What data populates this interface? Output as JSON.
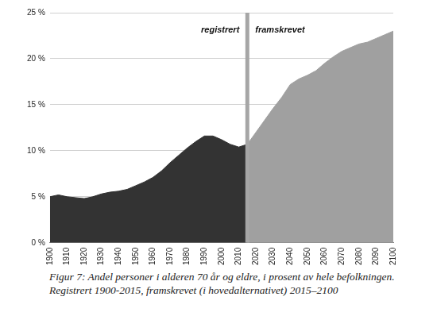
{
  "chart_data": {
    "type": "area",
    "caption": [
      "Figur 7: Andel personer i alderen 70 år og eldre, i prosent av hele befolkningen.",
      "Registrert 1900-2015, framskrevet (i hovedalternativet) 2015–2100"
    ],
    "series": [
      {
        "name": "registrert",
        "color": "#333333",
        "x": [
          1900,
          1905,
          1910,
          1915,
          1920,
          1925,
          1930,
          1935,
          1940,
          1945,
          1950,
          1955,
          1960,
          1965,
          1970,
          1975,
          1980,
          1985,
          1990,
          1995,
          2000,
          2005,
          2010,
          2015
        ],
        "values": [
          5.0,
          5.2,
          5.0,
          4.9,
          4.8,
          5.0,
          5.3,
          5.5,
          5.6,
          5.8,
          6.2,
          6.6,
          7.1,
          7.8,
          8.7,
          9.5,
          10.3,
          11.0,
          11.6,
          11.6,
          11.2,
          10.7,
          10.4,
          10.7
        ]
      },
      {
        "name": "framskrevet",
        "color": "#a0a0a0",
        "x": [
          2015,
          2020,
          2025,
          2030,
          2035,
          2040,
          2045,
          2050,
          2055,
          2060,
          2065,
          2070,
          2075,
          2080,
          2085,
          2090,
          2095,
          2100
        ],
        "values": [
          10.7,
          12.0,
          13.3,
          14.6,
          15.8,
          17.2,
          17.8,
          18.2,
          18.7,
          19.5,
          20.2,
          20.8,
          21.2,
          21.6,
          21.8,
          22.2,
          22.6,
          23.0
        ]
      }
    ],
    "vlines": [
      {
        "x": 2015,
        "color": "#a6a6a6"
      }
    ],
    "xlim": [
      1900,
      2100
    ],
    "xticks": [
      1900,
      1910,
      1920,
      1930,
      1940,
      1950,
      1960,
      1970,
      1980,
      1990,
      2000,
      2010,
      2020,
      2030,
      2040,
      2050,
      2060,
      2070,
      2080,
      2090,
      2100
    ],
    "ylim": [
      0,
      25
    ],
    "yticks": [
      {
        "value": 0,
        "label": "0 %"
      },
      {
        "value": 5,
        "label": "5 %"
      },
      {
        "value": 10,
        "label": "10 %"
      },
      {
        "value": 15,
        "label": "15 %"
      },
      {
        "value": 20,
        "label": "20 %"
      },
      {
        "value": 25,
        "label": "25 %"
      }
    ],
    "grid": true
  }
}
